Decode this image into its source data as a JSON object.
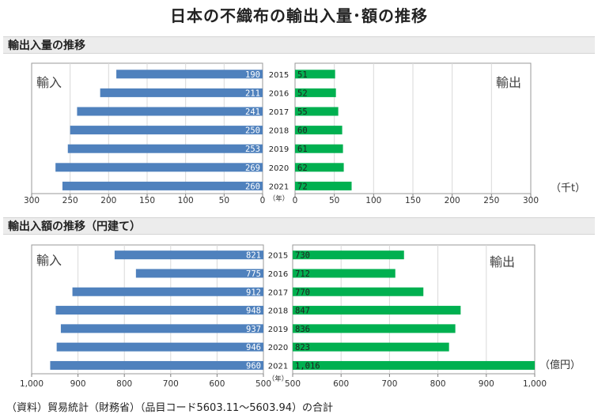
{
  "title": "日本の不織布の輸出入量･額の推移",
  "source": "（資料）貿易統計（財務省）（品目コード5603.11～5603.94）の合計",
  "colors": {
    "import": "#4f81bd",
    "export": "#00b050",
    "grid": "#d9d9d9",
    "axis": "#808080"
  },
  "chart_data": [
    {
      "type": "bar",
      "title": "輸出入量の推移",
      "categories": [
        "2015",
        "2016",
        "2017",
        "2018",
        "2019",
        "2020",
        "2021"
      ],
      "category_unit": "（年）",
      "unit": "（千t）",
      "series": [
        {
          "name": "輸入",
          "values": [
            190,
            211,
            241,
            250,
            253,
            269,
            260
          ],
          "labels": [
            "190",
            "211",
            "241",
            "250",
            "253",
            "269",
            "260"
          ],
          "range": [
            0,
            300
          ],
          "direction": "right-to-left",
          "ticks": [
            "300",
            "250",
            "200",
            "150",
            "100",
            "50",
            "0"
          ]
        },
        {
          "name": "輸出",
          "values": [
            51,
            52,
            55,
            60,
            61,
            62,
            72
          ],
          "labels": [
            "51",
            "52",
            "55",
            "60",
            "61",
            "62",
            "72"
          ],
          "range": [
            0,
            300
          ],
          "direction": "left-to-right",
          "ticks": [
            "0",
            "50",
            "100",
            "150",
            "200",
            "250",
            "300"
          ]
        }
      ]
    },
    {
      "type": "bar",
      "title": "輸出入額の推移（円建て）",
      "categories": [
        "2015",
        "2016",
        "2017",
        "2018",
        "2019",
        "2020",
        "2021"
      ],
      "category_unit": "（年）",
      "unit": "（億円）",
      "series": [
        {
          "name": "輸入",
          "values": [
            821,
            775,
            912,
            948,
            937,
            946,
            960
          ],
          "labels": [
            "821",
            "775",
            "912",
            "948",
            "937",
            "946",
            "960"
          ],
          "range": [
            500,
            1000
          ],
          "direction": "right-to-left",
          "ticks": [
            "1,000",
            "900",
            "800",
            "700",
            "600",
            "500"
          ]
        },
        {
          "name": "輸出",
          "values": [
            730,
            712,
            770,
            847,
            836,
            823,
            1016
          ],
          "labels": [
            "730",
            "712",
            "770",
            "847",
            "836",
            "823",
            "1,016"
          ],
          "range": [
            500,
            1000
          ],
          "direction": "left-to-right",
          "ticks": [
            "500",
            "600",
            "700",
            "800",
            "900",
            "1,000"
          ]
        }
      ]
    }
  ]
}
